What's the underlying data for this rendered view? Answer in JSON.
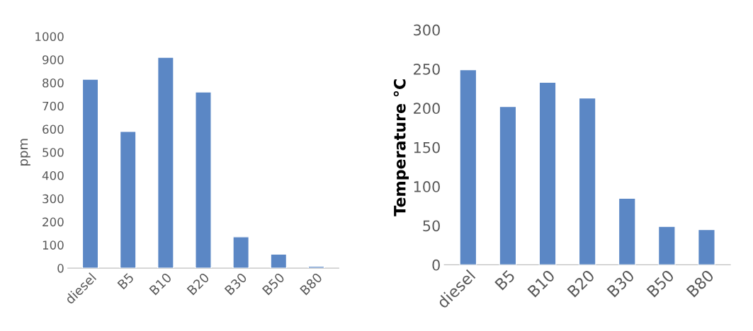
{
  "chart_data": [
    {
      "type": "bar",
      "ylabel": "ppm",
      "categories": [
        "diesel",
        "B5",
        "B10",
        "B20",
        "B30",
        "B50",
        "B80"
      ],
      "values": [
        815,
        590,
        910,
        760,
        135,
        60,
        8
      ],
      "color": "#5b87c5",
      "ylim": [
        0,
        1000
      ],
      "yticks": [
        0,
        100,
        200,
        300,
        400,
        500,
        600,
        700,
        800,
        900,
        1000
      ],
      "grid": false,
      "legend": false
    },
    {
      "type": "bar",
      "ylabel": "Temperature °C",
      "categories": [
        "diesel",
        "B5",
        "B10",
        "B20",
        "B30",
        "B50",
        "B80"
      ],
      "values": [
        249,
        202,
        233,
        213,
        85,
        49,
        45
      ],
      "color": "#5b87c5",
      "ylim": [
        0,
        300
      ],
      "yticks": [
        0,
        50,
        100,
        150,
        200,
        250,
        300
      ],
      "grid": false,
      "legend": false
    }
  ]
}
